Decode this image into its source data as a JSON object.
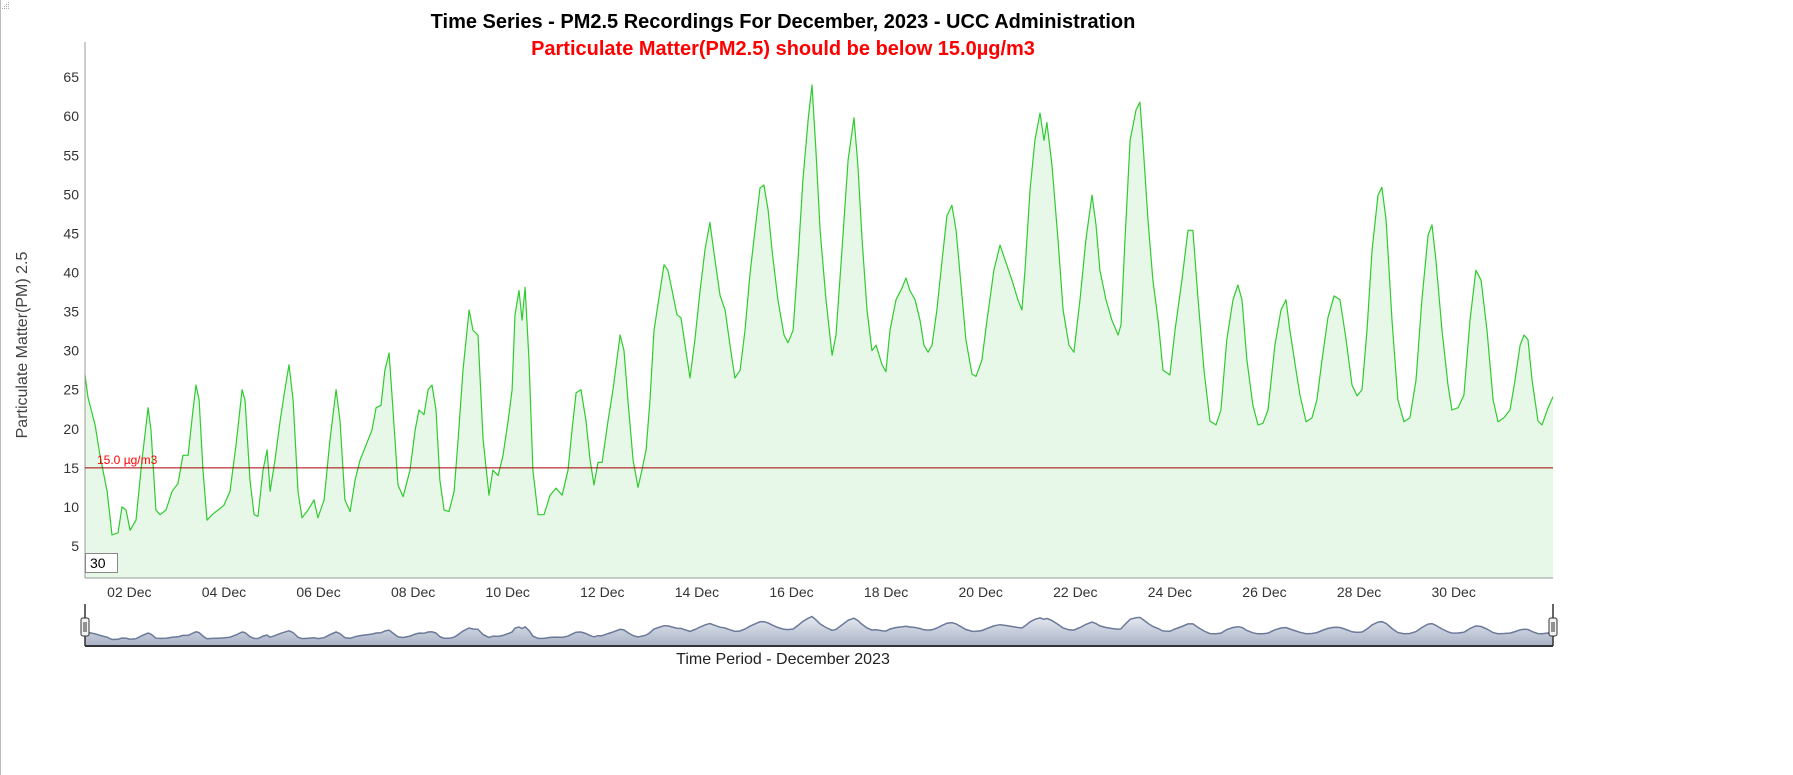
{
  "chart_data": {
    "type": "area",
    "title": "Time Series - PM2.5 Recordings For December, 2023 - UCC Administration",
    "subtitle": "Particulate Matter(PM2.5) should be below 15.0µg/m3",
    "xlabel": "Time Period - December 2023",
    "ylabel": "Particulate Matter(PM) 2.5",
    "x_unit": "hours since 01 Dec 2023 00:00",
    "xlim": [
      1.5,
      746.4
    ],
    "ylim": [
      0.9,
      69.5
    ],
    "yticks": [
      5,
      10,
      15,
      20,
      25,
      30,
      35,
      40,
      45,
      50,
      55,
      60,
      65
    ],
    "xticks": [
      {
        "label": "02 Dec",
        "x": 24
      },
      {
        "label": "04 Dec",
        "x": 72
      },
      {
        "label": "06 Dec",
        "x": 120
      },
      {
        "label": "08 Dec",
        "x": 168
      },
      {
        "label": "10 Dec",
        "x": 216
      },
      {
        "label": "12 Dec",
        "x": 264
      },
      {
        "label": "14 Dec",
        "x": 312
      },
      {
        "label": "16 Dec",
        "x": 360
      },
      {
        "label": "18 Dec",
        "x": 408
      },
      {
        "label": "20 Dec",
        "x": 456
      },
      {
        "label": "22 Dec",
        "x": 504
      },
      {
        "label": "24 Dec",
        "x": 552
      },
      {
        "label": "26 Dec",
        "x": 600
      },
      {
        "label": "28 Dec",
        "x": 648
      },
      {
        "label": "30 Dec",
        "x": 696
      }
    ],
    "threshold": {
      "value": 15.0,
      "label": "15.0 µg/m3"
    },
    "grid": false,
    "series": [
      {
        "name": "PM2.5",
        "points": [
          [
            1.5,
            26.9
          ],
          [
            3,
            24
          ],
          [
            6.6,
            20.5
          ],
          [
            9.1,
            16.6
          ],
          [
            12.7,
            12
          ],
          [
            15.2,
            6.4
          ],
          [
            18.3,
            6.7
          ],
          [
            20.3,
            10
          ],
          [
            22.3,
            9.6
          ],
          [
            24.4,
            7
          ],
          [
            27.4,
            8.3
          ],
          [
            30.4,
            16
          ],
          [
            33.5,
            22.7
          ],
          [
            35,
            19.8
          ],
          [
            37.5,
            9.6
          ],
          [
            39.6,
            9
          ],
          [
            42.6,
            9.6
          ],
          [
            45.7,
            12
          ],
          [
            48.7,
            13
          ],
          [
            51.2,
            16.6
          ],
          [
            53.8,
            16.6
          ],
          [
            56.3,
            22.4
          ],
          [
            57.8,
            25.6
          ],
          [
            59.4,
            23.7
          ],
          [
            61.4,
            14.7
          ],
          [
            63.4,
            8.3
          ],
          [
            66,
            9
          ],
          [
            69,
            9.6
          ],
          [
            72,
            10.2
          ],
          [
            75.1,
            12
          ],
          [
            78.1,
            17.9
          ],
          [
            81.2,
            25
          ],
          [
            82.7,
            23.7
          ],
          [
            85.2,
            13.4
          ],
          [
            87.3,
            9
          ],
          [
            89.3,
            8.8
          ],
          [
            91.8,
            14.7
          ],
          [
            93.9,
            17.3
          ],
          [
            95.4,
            12
          ],
          [
            97.9,
            16
          ],
          [
            100.5,
            21
          ],
          [
            102.5,
            24.3
          ],
          [
            105,
            28.2
          ],
          [
            107.1,
            23.7
          ],
          [
            109.6,
            12
          ],
          [
            111.6,
            8.6
          ],
          [
            114.7,
            9.6
          ],
          [
            117.7,
            10.9
          ],
          [
            119.7,
            8.6
          ],
          [
            122.8,
            10.9
          ],
          [
            125.8,
            18.6
          ],
          [
            128.9,
            25
          ],
          [
            130.9,
            21
          ],
          [
            133.4,
            10.9
          ],
          [
            136,
            9.4
          ],
          [
            138.5,
            13.4
          ],
          [
            141.1,
            16
          ],
          [
            144.1,
            17.9
          ],
          [
            147.1,
            19.8
          ],
          [
            149.2,
            22.7
          ],
          [
            151.7,
            23
          ],
          [
            153.7,
            27.5
          ],
          [
            155.8,
            29.7
          ],
          [
            157.8,
            22.4
          ],
          [
            160.3,
            12.8
          ],
          [
            162.9,
            11.3
          ],
          [
            166.4,
            14.7
          ],
          [
            169,
            19.8
          ],
          [
            171,
            22.4
          ],
          [
            173.5,
            21.8
          ],
          [
            175.6,
            25
          ],
          [
            177.6,
            25.6
          ],
          [
            179.6,
            22.4
          ],
          [
            181.6,
            13.4
          ],
          [
            183.7,
            9.6
          ],
          [
            186.2,
            9.4
          ],
          [
            188.8,
            12
          ],
          [
            190.8,
            18.6
          ],
          [
            193.3,
            27.5
          ],
          [
            196.4,
            35.2
          ],
          [
            198.4,
            32.6
          ],
          [
            200.9,
            32
          ],
          [
            203.5,
            18.6
          ],
          [
            206.5,
            11.5
          ],
          [
            208.5,
            14.7
          ],
          [
            211.1,
            14
          ],
          [
            213.6,
            16.6
          ],
          [
            216.2,
            21
          ],
          [
            218.2,
            25
          ],
          [
            219.7,
            34.6
          ],
          [
            221.7,
            37.7
          ],
          [
            223.3,
            33.9
          ],
          [
            224.8,
            38.1
          ],
          [
            226.8,
            28.8
          ],
          [
            228.8,
            14.7
          ],
          [
            231.4,
            9
          ],
          [
            234.4,
            9
          ],
          [
            237.5,
            11.5
          ],
          [
            240.5,
            12.4
          ],
          [
            243.6,
            11.5
          ],
          [
            246.6,
            14.7
          ],
          [
            248.6,
            19.8
          ],
          [
            250.7,
            24.6
          ],
          [
            253.2,
            25
          ],
          [
            255.7,
            21
          ],
          [
            257.8,
            16
          ],
          [
            259.8,
            12.8
          ],
          [
            261.8,
            15.7
          ],
          [
            263.9,
            15.7
          ],
          [
            266.9,
            21
          ],
          [
            269.4,
            25
          ],
          [
            273,
            32
          ],
          [
            275,
            30
          ],
          [
            277,
            23.7
          ],
          [
            279.6,
            16
          ],
          [
            282.1,
            12.5
          ],
          [
            284.1,
            14.7
          ],
          [
            286.2,
            17.3
          ],
          [
            288.2,
            23.7
          ],
          [
            290.2,
            32.6
          ],
          [
            293.3,
            37.7
          ],
          [
            295.3,
            41
          ],
          [
            297.3,
            40.3
          ],
          [
            299.4,
            37.7
          ],
          [
            301.9,
            34.6
          ],
          [
            303.9,
            34.2
          ],
          [
            306,
            30.7
          ],
          [
            308.5,
            26.5
          ],
          [
            311,
            31.4
          ],
          [
            313.6,
            37.7
          ],
          [
            316.1,
            42.9
          ],
          [
            318.6,
            46.4
          ],
          [
            321.2,
            41.6
          ],
          [
            323.7,
            37.1
          ],
          [
            326.3,
            35.2
          ],
          [
            328.8,
            30.7
          ],
          [
            331.3,
            26.5
          ],
          [
            333.9,
            27.5
          ],
          [
            336.4,
            32.6
          ],
          [
            338.9,
            39.7
          ],
          [
            341.5,
            45.4
          ],
          [
            344,
            50.8
          ],
          [
            346,
            51.2
          ],
          [
            348.1,
            48
          ],
          [
            350.1,
            42.9
          ],
          [
            353.1,
            36.5
          ],
          [
            356.2,
            32
          ],
          [
            358.2,
            31
          ],
          [
            360.8,
            32.6
          ],
          [
            363.3,
            41.6
          ],
          [
            365.8,
            51.8
          ],
          [
            368.4,
            59.5
          ],
          [
            370.4,
            64
          ],
          [
            372.4,
            55.7
          ],
          [
            374.5,
            45.4
          ],
          [
            377.5,
            36.5
          ],
          [
            380.6,
            29.4
          ],
          [
            382.6,
            32
          ],
          [
            385.6,
            42.9
          ],
          [
            388.7,
            54.4
          ],
          [
            391.7,
            59.8
          ],
          [
            393.7,
            53.7
          ],
          [
            395.8,
            44.2
          ],
          [
            398.3,
            35.2
          ],
          [
            400.8,
            30
          ],
          [
            402.9,
            30.7
          ],
          [
            405.9,
            28.2
          ],
          [
            407.9,
            27.3
          ],
          [
            410,
            32.6
          ],
          [
            413,
            36.5
          ],
          [
            416,
            38
          ],
          [
            418.1,
            39.3
          ],
          [
            420.1,
            37.7
          ],
          [
            422.7,
            36.5
          ],
          [
            425.2,
            33.9
          ],
          [
            427.2,
            30.7
          ],
          [
            429.3,
            29.8
          ],
          [
            431.3,
            30.7
          ],
          [
            433.8,
            35.2
          ],
          [
            436.4,
            41.6
          ],
          [
            438.9,
            47.3
          ],
          [
            441.4,
            48.6
          ],
          [
            443.5,
            45.4
          ],
          [
            446,
            38.4
          ],
          [
            448.5,
            31.4
          ],
          [
            451.6,
            27
          ],
          [
            453.6,
            26.7
          ],
          [
            456.6,
            28.8
          ],
          [
            459.2,
            33.9
          ],
          [
            462.7,
            40.3
          ],
          [
            465.8,
            43.5
          ],
          [
            468.8,
            41.3
          ],
          [
            471.9,
            39
          ],
          [
            474.9,
            36.5
          ],
          [
            476.9,
            35.2
          ],
          [
            478.5,
            40.3
          ],
          [
            481,
            50.5
          ],
          [
            483.5,
            56.9
          ],
          [
            486.1,
            60.4
          ],
          [
            488.1,
            56.9
          ],
          [
            489.6,
            59.2
          ],
          [
            492.2,
            53.7
          ],
          [
            495.2,
            44.2
          ],
          [
            497.8,
            35.2
          ],
          [
            500.8,
            30.7
          ],
          [
            503.3,
            29.8
          ],
          [
            506.4,
            36.5
          ],
          [
            509.4,
            44.2
          ],
          [
            512.5,
            49.9
          ],
          [
            514.5,
            46.1
          ],
          [
            516.5,
            40.3
          ],
          [
            519.6,
            36.5
          ],
          [
            522.6,
            33.9
          ],
          [
            525.7,
            32
          ],
          [
            527.2,
            33.3
          ],
          [
            529.2,
            44.2
          ],
          [
            531.8,
            56.9
          ],
          [
            534.8,
            60.8
          ],
          [
            536.8,
            61.8
          ],
          [
            538.4,
            56.3
          ],
          [
            540.9,
            46.7
          ],
          [
            543.4,
            39
          ],
          [
            546,
            33.9
          ],
          [
            548.5,
            27.5
          ],
          [
            552,
            26.9
          ],
          [
            554.6,
            32.6
          ],
          [
            558.1,
            39
          ],
          [
            561.2,
            45.4
          ],
          [
            563.7,
            45.4
          ],
          [
            566.3,
            36.5
          ],
          [
            569.3,
            27.5
          ],
          [
            572.3,
            21
          ],
          [
            575.4,
            20.5
          ],
          [
            577.9,
            22.4
          ],
          [
            580.9,
            31.4
          ],
          [
            584,
            36.5
          ],
          [
            586.5,
            38.4
          ],
          [
            588.6,
            36.5
          ],
          [
            591.1,
            28.8
          ],
          [
            594.1,
            23
          ],
          [
            596.7,
            20.5
          ],
          [
            599.2,
            20.7
          ],
          [
            601.8,
            22.4
          ],
          [
            605.3,
            30.7
          ],
          [
            608.4,
            35.2
          ],
          [
            610.9,
            36.5
          ],
          [
            612.9,
            32.6
          ],
          [
            616,
            27.5
          ],
          [
            618,
            24.3
          ],
          [
            621.1,
            20.9
          ],
          [
            624.1,
            21.4
          ],
          [
            626.6,
            23.7
          ],
          [
            629.2,
            28.8
          ],
          [
            632.2,
            34.2
          ],
          [
            635.3,
            37
          ],
          [
            638.3,
            36.5
          ],
          [
            641.4,
            31.4
          ],
          [
            644.4,
            25.6
          ],
          [
            647,
            24.2
          ],
          [
            649.5,
            25
          ],
          [
            652,
            32.6
          ],
          [
            654.6,
            42.9
          ],
          [
            657.6,
            49.9
          ],
          [
            659.6,
            50.9
          ],
          [
            661.7,
            46.7
          ],
          [
            664.7,
            33.9
          ],
          [
            667.7,
            23.7
          ],
          [
            670.8,
            20.9
          ],
          [
            673.8,
            21.4
          ],
          [
            676.9,
            26.2
          ],
          [
            679.9,
            36.5
          ],
          [
            683,
            44.8
          ],
          [
            685,
            46.1
          ],
          [
            687,
            41.6
          ],
          [
            690.1,
            32.6
          ],
          [
            693.1,
            25.6
          ],
          [
            695.1,
            22.4
          ],
          [
            698.2,
            22.7
          ],
          [
            701.2,
            24.3
          ],
          [
            704.3,
            33.9
          ],
          [
            707.3,
            40.3
          ],
          [
            709.9,
            39
          ],
          [
            712.9,
            32.6
          ],
          [
            716,
            23.7
          ],
          [
            718.5,
            20.9
          ],
          [
            721.5,
            21.4
          ],
          [
            724.6,
            22.4
          ],
          [
            727.1,
            26.2
          ],
          [
            729.7,
            30.7
          ],
          [
            731.7,
            32
          ],
          [
            733.7,
            31.4
          ],
          [
            735.8,
            26.2
          ],
          [
            738.8,
            21
          ],
          [
            740.8,
            20.5
          ],
          [
            743.9,
            22.7
          ],
          [
            746.4,
            24.1
          ]
        ]
      }
    ]
  },
  "colors": {
    "line": "#2ecc2e",
    "fill": "#e8f8e8",
    "threshold": "#cc0000",
    "navigator_line": "#6b7a99",
    "subtitle": "#ff0000"
  },
  "controls": {
    "range_days": "30"
  }
}
